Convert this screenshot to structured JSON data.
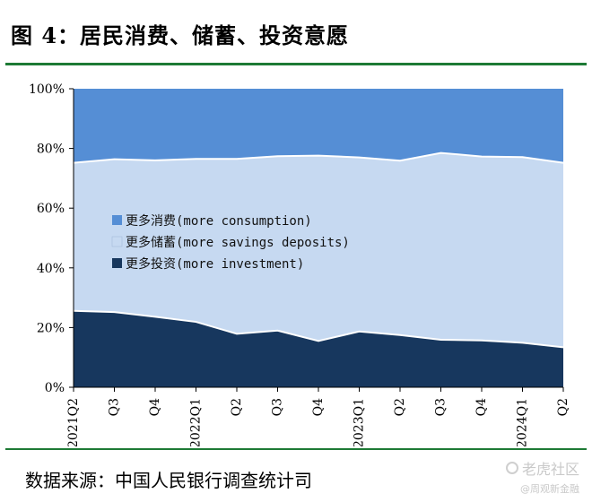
{
  "figure_title": "图 4：居民消费、储蓄、投资意愿",
  "source_note": "数据来源：中国人民银行调查统计司",
  "watermark": {
    "main": "老虎社区",
    "sub": "@周观新金融"
  },
  "colors": {
    "consumption": "#558ed5",
    "savings": "#c6d9f1",
    "investment": "#17375e",
    "rule": "#1e7a35"
  },
  "chart_data": {
    "type": "area",
    "stacked": true,
    "x": [
      "2021Q2",
      "Q3",
      "Q4",
      "2022Q1",
      "Q2",
      "Q3",
      "Q4",
      "2023Q1",
      "Q2",
      "Q3",
      "Q4",
      "2024Q1",
      "Q2"
    ],
    "ylim": [
      0,
      100
    ],
    "yticks": [
      "0%",
      "20%",
      "40%",
      "60%",
      "80%",
      "100%"
    ],
    "grid": false,
    "legend_position": "center-left",
    "series": [
      {
        "name": "更多投资(more investment)",
        "key": "investment",
        "values": [
          25.6,
          25.2,
          23.6,
          21.9,
          17.9,
          19.0,
          15.5,
          18.7,
          17.5,
          15.9,
          15.7,
          14.9,
          13.4
        ]
      },
      {
        "name": "更多储蓄(more savings deposits)",
        "key": "savings",
        "values": [
          49.6,
          51.2,
          52.4,
          54.6,
          58.6,
          58.4,
          62.1,
          58.3,
          58.4,
          62.6,
          61.6,
          62.2,
          61.8
        ]
      },
      {
        "name": "更多消费(more consumption)",
        "key": "consumption",
        "values": [
          24.8,
          23.6,
          24.0,
          23.5,
          23.5,
          22.6,
          22.4,
          23.0,
          24.1,
          21.5,
          22.7,
          22.9,
          24.8
        ]
      }
    ],
    "legend_order": [
      "consumption",
      "savings",
      "investment"
    ]
  }
}
